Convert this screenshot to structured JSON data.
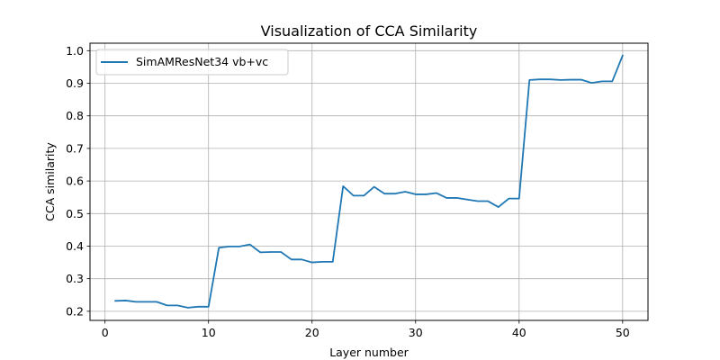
{
  "chart_data": {
    "type": "line",
    "title": "Visualization of CCA Similarity",
    "xlabel": "Layer number",
    "ylabel": "CCA similarity",
    "xlim": [
      -1.45,
      52.45
    ],
    "ylim": [
      0.172,
      1.023
    ],
    "xticks": [
      0,
      10,
      20,
      30,
      40,
      50
    ],
    "xtick_labels": [
      "0",
      "10",
      "20",
      "30",
      "40",
      "50"
    ],
    "yticks": [
      0.2,
      0.3,
      0.4,
      0.5,
      0.6,
      0.7,
      0.8,
      0.9,
      1.0
    ],
    "ytick_labels": [
      "0.2",
      "0.3",
      "0.4",
      "0.5",
      "0.6",
      "0.7",
      "0.8",
      "0.9",
      "1.0"
    ],
    "grid": true,
    "legend_position": "top-left",
    "series": [
      {
        "name": "SimAMResNet34 vb+vc",
        "color": "#1f77b4",
        "x": [
          1,
          2,
          3,
          4,
          5,
          6,
          7,
          8,
          9,
          10,
          11,
          12,
          13,
          14,
          15,
          16,
          17,
          18,
          19,
          20,
          21,
          22,
          23,
          24,
          25,
          26,
          27,
          28,
          29,
          30,
          31,
          32,
          33,
          34,
          35,
          36,
          37,
          38,
          39,
          40,
          41,
          42,
          43,
          44,
          45,
          46,
          47,
          48,
          49,
          50
        ],
        "y": [
          0.232,
          0.233,
          0.229,
          0.229,
          0.229,
          0.218,
          0.218,
          0.211,
          0.214,
          0.214,
          0.395,
          0.399,
          0.399,
          0.405,
          0.381,
          0.382,
          0.382,
          0.359,
          0.359,
          0.35,
          0.352,
          0.352,
          0.584,
          0.555,
          0.555,
          0.582,
          0.561,
          0.561,
          0.567,
          0.559,
          0.559,
          0.563,
          0.548,
          0.548,
          0.543,
          0.538,
          0.538,
          0.52,
          0.546,
          0.546,
          0.91,
          0.912,
          0.912,
          0.91,
          0.911,
          0.911,
          0.901,
          0.906,
          0.906,
          0.985
        ]
      }
    ]
  }
}
